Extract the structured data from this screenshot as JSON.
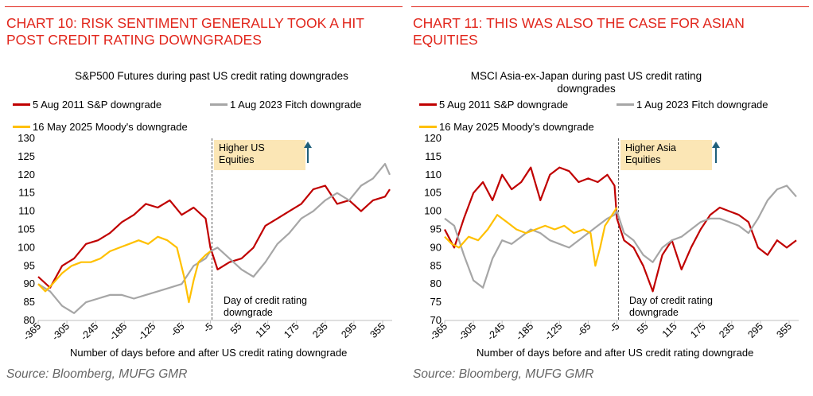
{
  "colors": {
    "accent_red": "#e1261c",
    "s2011": "#c00000",
    "f2023": "#a6a6a6",
    "m2025": "#ffc000",
    "annot_bg": "#fbe6b5",
    "arrow": "#1f5f7a"
  },
  "chart_data": [
    {
      "type": "line",
      "heading": "CHART 10: RISK SENTIMENT GENERALLY TOOK A HIT POST CREDIT RATING DOWNGRADES",
      "title": "S&P500 Futures during past US credit rating downgrades",
      "xlabel": "Number of days before and after US credit rating downgrade",
      "ylabel": "",
      "ylim": [
        80,
        130
      ],
      "yticks": [
        "80",
        "85",
        "90",
        "95",
        "100",
        "105",
        "110",
        "115",
        "120",
        "125",
        "130"
      ],
      "xlim": [
        -365,
        375
      ],
      "xticks": [
        "-365",
        "-305",
        "-245",
        "-185",
        "-125",
        "-65",
        "-5",
        "55",
        "115",
        "175",
        "235",
        "295",
        "355"
      ],
      "annotation_box": [
        "Higher US",
        "Equities"
      ],
      "annotation_day": [
        "Day of credit rating",
        "downgrade"
      ],
      "source": "Source: Bloomberg, MUFG GMR",
      "series": [
        {
          "name": "5 Aug 2011 S&P downgrade",
          "color": "#c00000",
          "x": [
            -365,
            -340,
            -315,
            -290,
            -265,
            -240,
            -215,
            -190,
            -165,
            -140,
            -115,
            -90,
            -65,
            -40,
            -15,
            -5,
            10,
            35,
            60,
            85,
            110,
            135,
            160,
            185,
            210,
            235,
            260,
            285,
            310,
            335,
            360,
            370
          ],
          "y": [
            92,
            89,
            95,
            97,
            101,
            102,
            104,
            107,
            109,
            112,
            111,
            113,
            109,
            111,
            108,
            100,
            94,
            96,
            97,
            100,
            106,
            108,
            110,
            112,
            116,
            117,
            112,
            113,
            110,
            113,
            114,
            116
          ]
        },
        {
          "name": "1 Aug 2023 Fitch downgrade",
          "color": "#a6a6a6",
          "x": [
            -365,
            -340,
            -315,
            -290,
            -265,
            -240,
            -215,
            -190,
            -165,
            -140,
            -115,
            -90,
            -65,
            -40,
            -15,
            -5,
            10,
            35,
            60,
            85,
            110,
            135,
            160,
            185,
            210,
            235,
            260,
            285,
            310,
            335,
            360,
            370
          ],
          "y": [
            90,
            88,
            84,
            82,
            85,
            86,
            87,
            87,
            86,
            87,
            88,
            89,
            90,
            95,
            97,
            99,
            100,
            97,
            94,
            92,
            96,
            101,
            104,
            108,
            110,
            113,
            115,
            113,
            117,
            119,
            123,
            120
          ]
        },
        {
          "name": "16 May 2025 Moody's downgrade",
          "color": "#ffc000",
          "x": [
            -365,
            -350,
            -335,
            -315,
            -295,
            -275,
            -255,
            -235,
            -215,
            -195,
            -175,
            -155,
            -135,
            -115,
            -95,
            -75,
            -60,
            -50,
            -40,
            -30,
            -15,
            -5
          ],
          "y": [
            90,
            88,
            90,
            93,
            95,
            96,
            96,
            97,
            99,
            100,
            101,
            102,
            101,
            103,
            102,
            100,
            92,
            85,
            91,
            96,
            98,
            99
          ]
        }
      ]
    },
    {
      "type": "line",
      "heading": "CHART 11: THIS WAS ALSO THE CASE FOR ASIAN EQUITIES",
      "title": "MSCI Asia-ex-Japan during past US credit rating downgrades",
      "xlabel": "Number of days before and after US credit rating downgrade",
      "ylabel": "",
      "ylim": [
        70,
        120
      ],
      "yticks": [
        "70",
        "75",
        "80",
        "85",
        "90",
        "95",
        "100",
        "105",
        "110",
        "115",
        "120"
      ],
      "xlim": [
        -365,
        375
      ],
      "xticks": [
        "-365",
        "-305",
        "-245",
        "-185",
        "-125",
        "-65",
        "-5",
        "55",
        "115",
        "175",
        "235",
        "295",
        "355"
      ],
      "annotation_box": [
        "Higher Asia",
        "Equities"
      ],
      "annotation_day": [
        "Day of credit rating",
        "downgrade"
      ],
      "source": "Source: Bloomberg, MUFG GMR",
      "series": [
        {
          "name": "5 Aug 2011 S&P downgrade",
          "color": "#c00000",
          "x": [
            -365,
            -345,
            -325,
            -305,
            -285,
            -265,
            -245,
            -225,
            -205,
            -185,
            -165,
            -145,
            -125,
            -105,
            -85,
            -65,
            -45,
            -25,
            -10,
            -5,
            10,
            30,
            50,
            70,
            90,
            110,
            130,
            150,
            170,
            190,
            210,
            230,
            250,
            270,
            290,
            310,
            330,
            350,
            370
          ],
          "y": [
            95,
            90,
            98,
            105,
            108,
            103,
            110,
            106,
            108,
            112,
            103,
            110,
            112,
            111,
            108,
            109,
            108,
            110,
            107,
            98,
            92,
            90,
            85,
            78,
            88,
            92,
            84,
            90,
            95,
            99,
            101,
            100,
            99,
            97,
            90,
            88,
            92,
            90,
            92
          ]
        },
        {
          "name": "1 Aug 2023 Fitch downgrade",
          "color": "#a6a6a6",
          "x": [
            -365,
            -345,
            -325,
            -305,
            -285,
            -265,
            -245,
            -225,
            -205,
            -185,
            -165,
            -145,
            -125,
            -105,
            -85,
            -65,
            -45,
            -25,
            -10,
            -5,
            10,
            30,
            50,
            70,
            90,
            110,
            130,
            150,
            170,
            190,
            210,
            230,
            250,
            270,
            290,
            310,
            330,
            350,
            370
          ],
          "y": [
            98,
            96,
            88,
            81,
            79,
            87,
            92,
            91,
            93,
            95,
            94,
            92,
            91,
            90,
            92,
            94,
            96,
            98,
            99,
            100,
            94,
            92,
            88,
            86,
            90,
            92,
            93,
            95,
            97,
            98,
            98,
            97,
            96,
            94,
            98,
            103,
            106,
            107,
            104
          ]
        },
        {
          "name": "16 May 2025 Moody's downgrade",
          "color": "#ffc000",
          "x": [
            -365,
            -350,
            -335,
            -315,
            -295,
            -275,
            -255,
            -235,
            -215,
            -195,
            -175,
            -155,
            -135,
            -115,
            -95,
            -75,
            -60,
            -50,
            -40,
            -30,
            -15,
            -5
          ],
          "y": [
            93,
            91,
            90,
            93,
            92,
            95,
            99,
            97,
            95,
            94,
            95,
            96,
            95,
            96,
            94,
            95,
            94,
            85,
            90,
            96,
            99,
            101
          ]
        }
      ]
    }
  ]
}
